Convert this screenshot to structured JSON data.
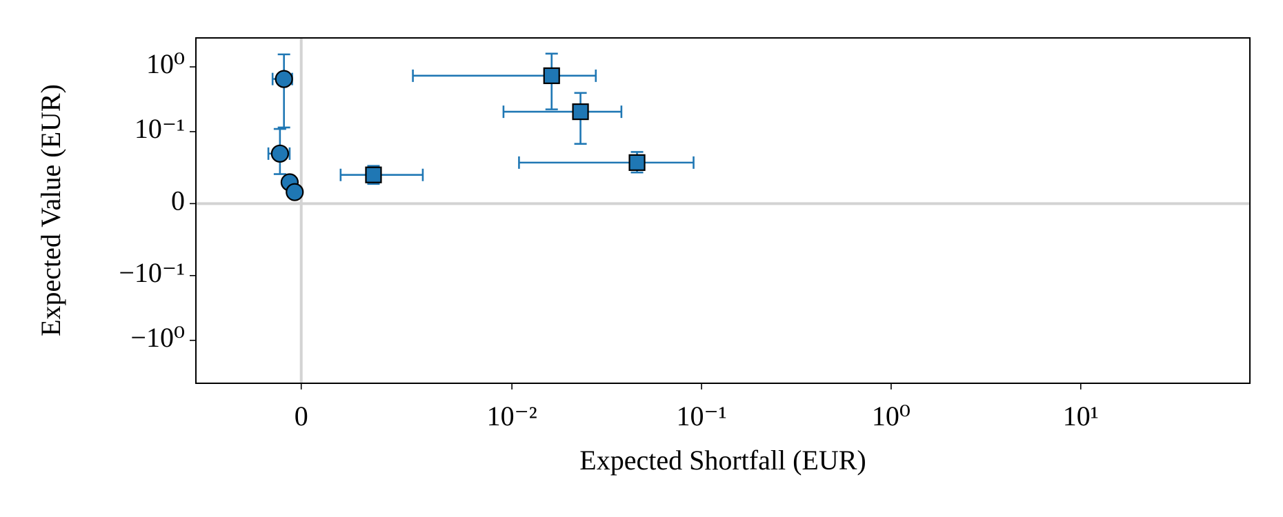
{
  "chart_data": {
    "type": "scatter",
    "xlabel": "Expected Shortfall (EUR)",
    "ylabel": "Expected Value (EUR)",
    "xscale": "symlog",
    "xlinthresh": 0.01,
    "yscale": "symlog",
    "ylinthresh": 0.1,
    "xlim": [
      -0.005,
      78
    ],
    "ylim": [
      -4.6,
      2.8
    ],
    "xticks": [
      {
        "value": 0,
        "label": "0"
      },
      {
        "value": 0.01,
        "label": "10⁻²"
      },
      {
        "value": 0.1,
        "label": "10⁻¹"
      },
      {
        "value": 1,
        "label": "10⁰"
      },
      {
        "value": 10,
        "label": "10¹"
      }
    ],
    "yticks": [
      {
        "value": 1,
        "label": "10⁰"
      },
      {
        "value": 0.1,
        "label": "10⁻¹"
      },
      {
        "value": 0,
        "label": "0"
      },
      {
        "value": -0.1,
        "label": "−10⁻¹"
      },
      {
        "value": -1,
        "label": "−10⁰"
      }
    ],
    "series": [
      {
        "marker": "circle",
        "color": "#1f77b4",
        "x": [
          -0.00082,
          -0.00101,
          -0.00055,
          -0.00031
        ],
        "y": [
          0.65,
          0.0695,
          0.0296,
          0.016
        ],
        "xerr": [
          [
            0.00054,
            0.00055,
            0,
            0
          ],
          [
            0.00039,
            0.00046,
            0,
            0
          ]
        ],
        "yerr": [
          [
            0.534,
            0.0285,
            0,
            0
          ],
          [
            0.91,
            0.0405,
            0,
            0
          ]
        ]
      },
      {
        "marker": "square",
        "color": "#1f77b4",
        "x": [
          0.00343,
          0.0162,
          0.023,
          0.0457
        ],
        "y": [
          0.0399,
          0.73,
          0.203,
          0.057
        ],
        "xerr": [
          [
            0.00156,
            0.0109,
            0.0134,
            0.0348
          ],
          [
            0.00234,
            0.0115,
            0.0148,
            0.0451
          ]
        ],
        "yerr": [
          [
            0.0126,
            0.509,
            0.12,
            0.0137
          ],
          [
            0.0125,
            0.87,
            0.193,
            0.0148
          ]
        ]
      }
    ]
  }
}
